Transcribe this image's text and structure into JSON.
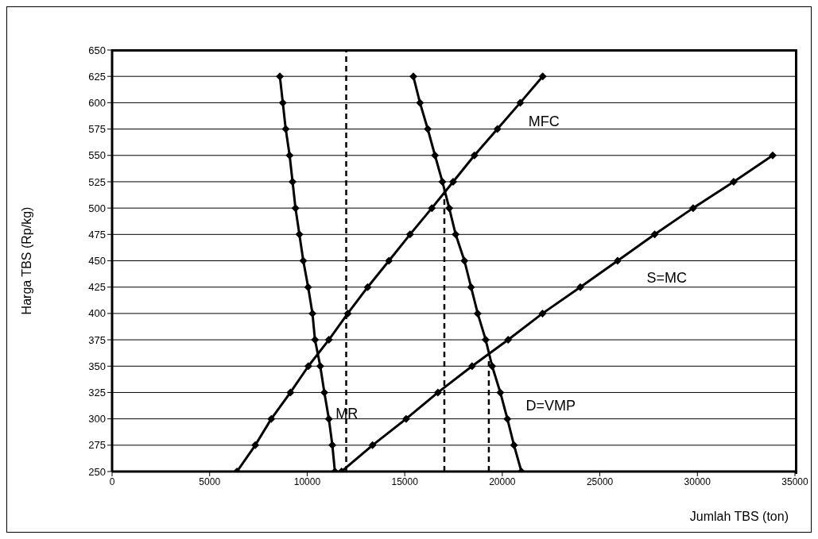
{
  "chart_data": {
    "type": "line",
    "xlabel": "Jumlah TBS (ton)",
    "ylabel": "Harga TBS (Rp/kg)",
    "xlim": [
      0,
      35000
    ],
    "xticks": [
      0,
      5000,
      10000,
      15000,
      20000,
      25000,
      30000,
      35000
    ],
    "ylim": [
      250,
      650
    ],
    "yticks": [
      250,
      275,
      300,
      325,
      350,
      375,
      400,
      425,
      450,
      475,
      500,
      525,
      550,
      575,
      600,
      625,
      650
    ],
    "grid": "y",
    "marker": "diamond",
    "line_style": "solid",
    "series": [
      {
        "name": "MR",
        "color": "#000000",
        "x": [
          11420,
          11290,
          11110,
          10880,
          10670,
          10400,
          10270,
          10050,
          9800,
          9600,
          9400,
          9250,
          9100,
          8900,
          8750,
          8600
        ],
        "values": [
          250,
          275,
          300,
          325,
          350,
          375,
          400,
          425,
          450,
          475,
          500,
          525,
          550,
          575,
          600,
          625
        ]
      },
      {
        "name": "MFC",
        "color": "#000000",
        "x": [
          6400,
          7340,
          8160,
          9140,
          10060,
          11110,
          12080,
          13100,
          14190,
          15270,
          16390,
          17480,
          18570,
          19750,
          20920,
          22070
        ],
        "values": [
          250,
          275,
          300,
          325,
          350,
          375,
          400,
          425,
          450,
          475,
          500,
          525,
          550,
          575,
          600,
          625
        ]
      },
      {
        "name": "D=VMP",
        "color": "#000000",
        "x": [
          20980,
          20600,
          20260,
          19900,
          19480,
          19150,
          18740,
          18400,
          18060,
          17610,
          17280,
          16930,
          16550,
          16180,
          15780,
          15440
        ],
        "values": [
          250,
          275,
          300,
          325,
          350,
          375,
          400,
          425,
          450,
          475,
          500,
          525,
          550,
          575,
          600,
          625
        ]
      },
      {
        "name": "S=MC",
        "color": "#000000",
        "x": [
          11760,
          13350,
          15070,
          16700,
          18450,
          20300,
          22060,
          24000,
          25910,
          27810,
          29780,
          31860,
          33860
        ],
        "values": [
          250,
          275,
          300,
          325,
          350,
          375,
          400,
          425,
          450,
          475,
          500,
          525,
          550
        ]
      },
      {
        "color": "#000000",
        "marker": "none",
        "line_style": "dashed",
        "x": [
          12000,
          12000
        ],
        "values": [
          250,
          650
        ]
      },
      {
        "color": "#000000",
        "marker": "none",
        "line_style": "dashed",
        "x": [
          17030,
          17030
        ],
        "values": [
          250,
          517
        ]
      },
      {
        "color": "#000000",
        "marker": "none",
        "line_style": "dashed",
        "x": [
          19310,
          19310
        ],
        "values": [
          250,
          358
        ]
      }
    ]
  }
}
